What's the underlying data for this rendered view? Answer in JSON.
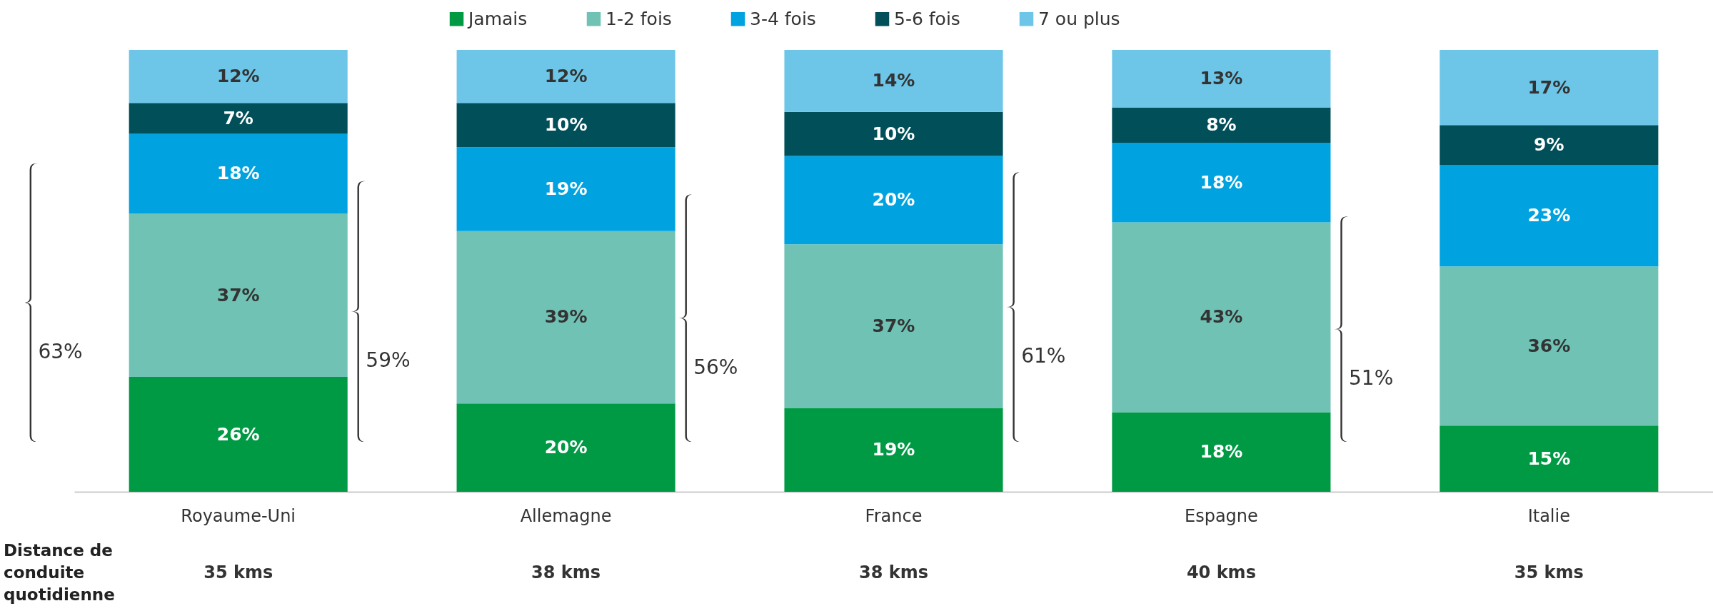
{
  "chart_data": {
    "type": "bar",
    "stacked": true,
    "categories": [
      "Royaume-Uni",
      "Allemagne",
      "France",
      "Espagne",
      "Italie"
    ],
    "series": [
      {
        "name": "Jamais",
        "color": "#009a44",
        "values": [
          26,
          20,
          19,
          18,
          15
        ],
        "value_labels": [
          "26%",
          "20%",
          "19%",
          "18%",
          "15%"
        ]
      },
      {
        "name": "1-2 fois",
        "color": "#6fc2b4",
        "values": [
          37,
          39,
          37,
          43,
          36
        ],
        "value_labels": [
          "37%",
          "39%",
          "37%",
          "43%",
          "36%"
        ]
      },
      {
        "name": "3-4 fois",
        "color": "#00a3e0",
        "values": [
          18,
          19,
          20,
          18,
          23
        ],
        "value_labels": [
          "18%",
          "19%",
          "20%",
          "18%",
          "23%"
        ]
      },
      {
        "name": "5-6 fois",
        "color": "#004f59",
        "values": [
          7,
          10,
          10,
          8,
          9
        ],
        "value_labels": [
          "7%",
          "10%",
          "10%",
          "8%",
          "9%"
        ]
      },
      {
        "name": "7 ou plus",
        "color": "#6dc6e8",
        "values": [
          12,
          12,
          14,
          13,
          17
        ],
        "value_labels": [
          "12%",
          "12%",
          "14%",
          "13%",
          "17%"
        ]
      }
    ],
    "legend": "top",
    "annotations": [
      "63%",
      "59%",
      "56%",
      "61%",
      "51%",
      "Distance de conduite quotidienne",
      "35 kms",
      "38 kms",
      "38 kms",
      "40 kms",
      "35 kms"
    ]
  }
}
